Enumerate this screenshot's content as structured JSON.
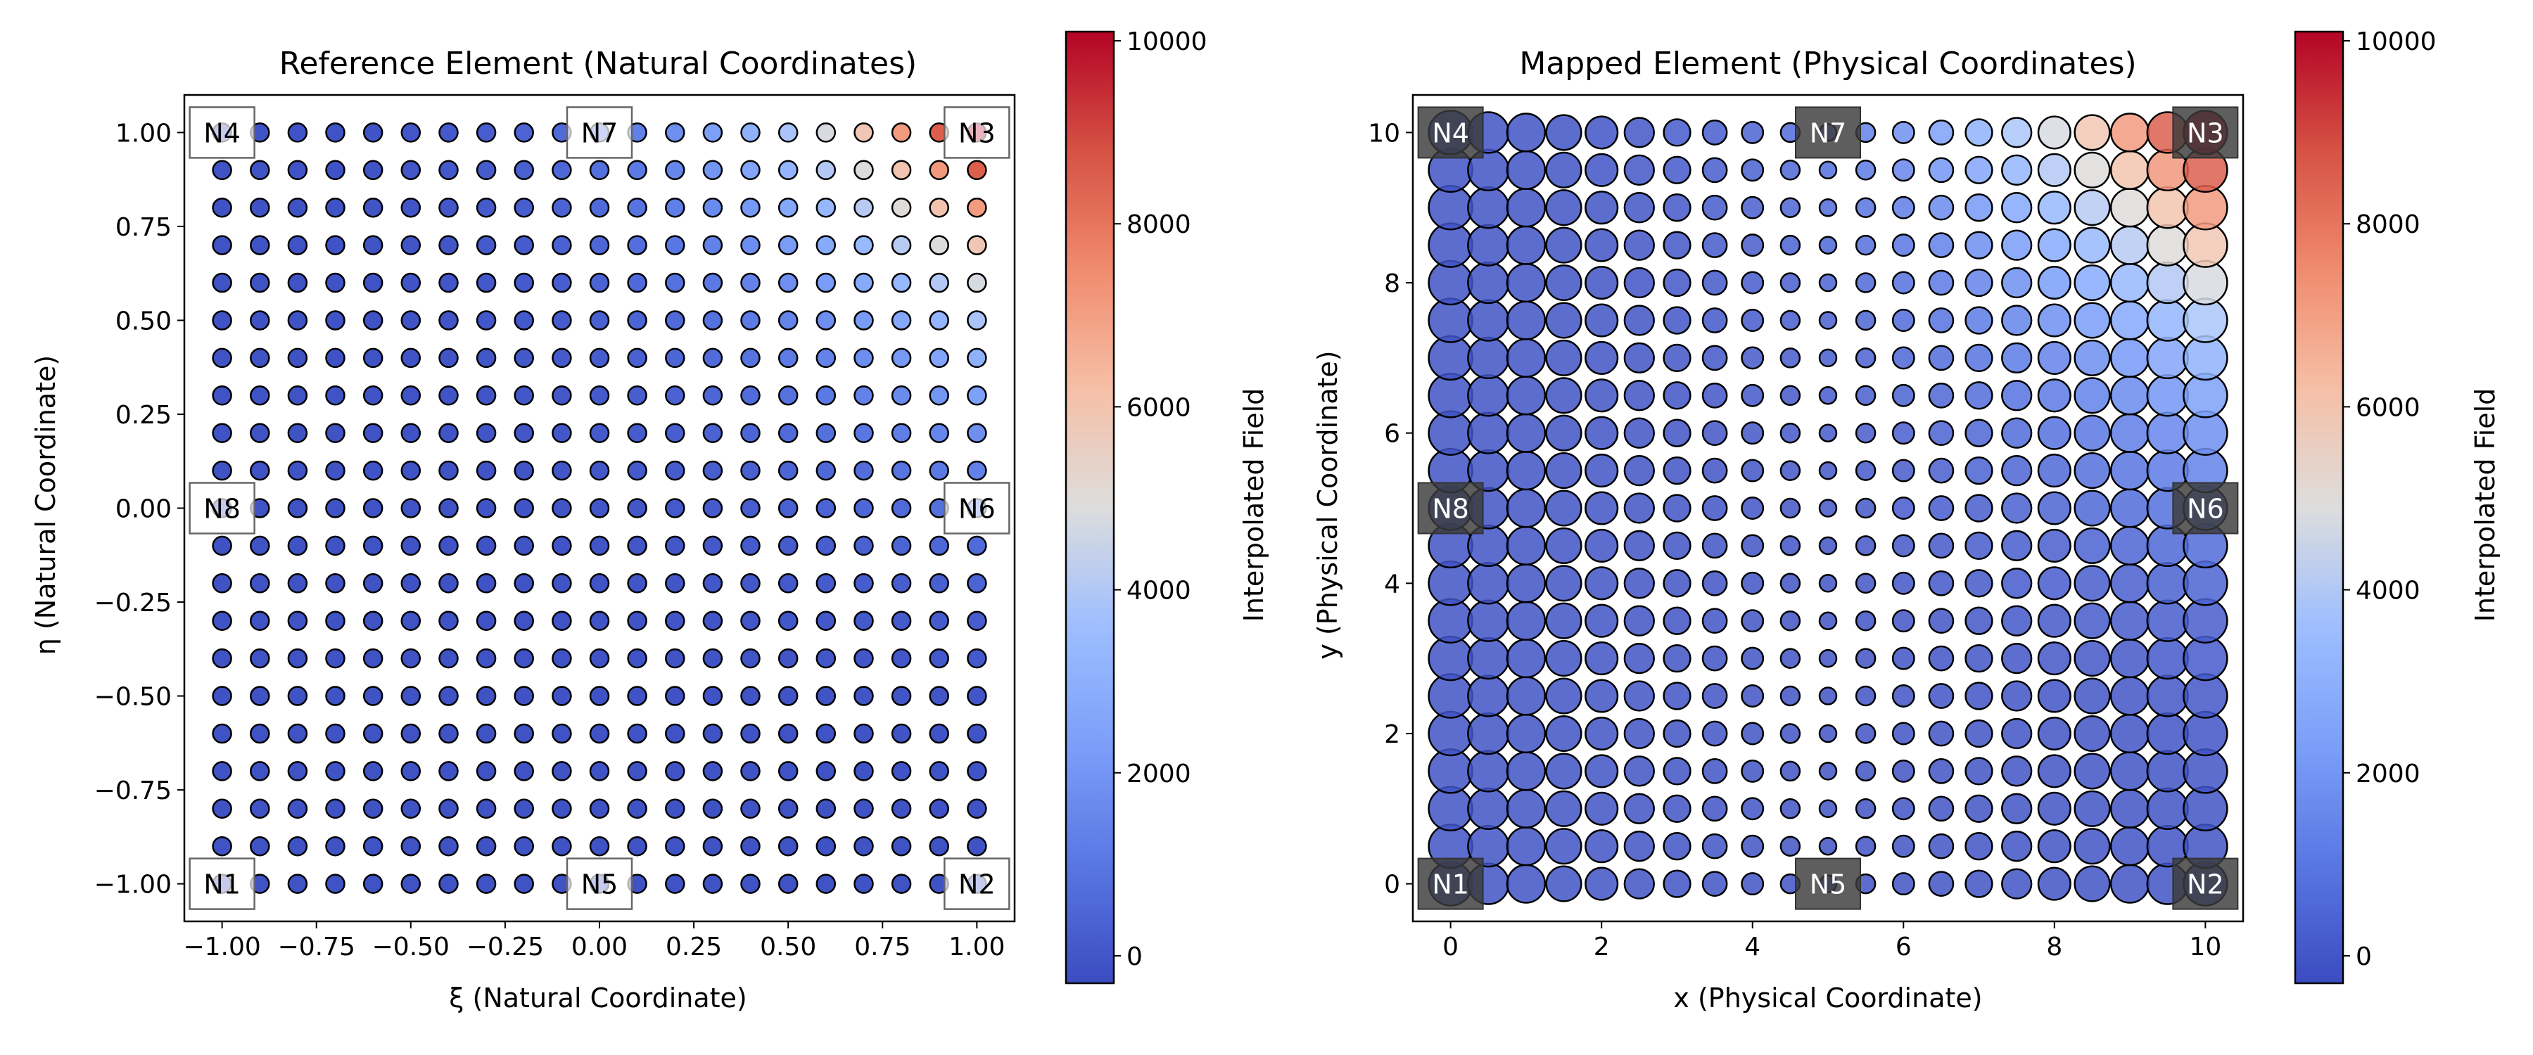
{
  "chart_data": [
    {
      "type": "scatter",
      "title": "Reference Element (Natural Coordinates)",
      "xlabel": "ξ (Natural Coordinate)",
      "ylabel": "η (Natural Coordinate)",
      "xlim": [
        -1.1,
        1.1
      ],
      "ylim": [
        -1.1,
        1.1
      ],
      "xticks": [
        -1.0,
        -0.75,
        -0.5,
        -0.25,
        0.0,
        0.25,
        0.5,
        0.75,
        1.0
      ],
      "xtick_labels": [
        "−1.00",
        "−0.75",
        "−0.50",
        "−0.25",
        "0.00",
        "0.25",
        "0.50",
        "0.75",
        "1.00"
      ],
      "yticks": [
        -1.0,
        -0.75,
        -0.5,
        -0.25,
        0.0,
        0.25,
        0.5,
        0.75,
        1.0
      ],
      "ytick_labels": [
        "−1.00",
        "−0.75",
        "−0.50",
        "−0.25",
        "0.00",
        "0.25",
        "0.50",
        "0.75",
        "1.00"
      ],
      "grid": false,
      "points": {
        "grid_n": 21,
        "range": [
          -1.0,
          1.0
        ],
        "marker": "circle",
        "size": "uniform"
      },
      "nodes": [
        {
          "label": "N1",
          "x": -1.0,
          "y": -1.0
        },
        {
          "label": "N2",
          "x": 1.0,
          "y": -1.0
        },
        {
          "label": "N3",
          "x": 1.0,
          "y": 1.0
        },
        {
          "label": "N4",
          "x": -1.0,
          "y": 1.0
        },
        {
          "label": "N5",
          "x": 0.0,
          "y": -1.0
        },
        {
          "label": "N6",
          "x": 1.0,
          "y": 0.0
        },
        {
          "label": "N7",
          "x": 0.0,
          "y": 1.0
        },
        {
          "label": "N8",
          "x": -1.0,
          "y": 0.0
        }
      ],
      "node_label_style": "white-box",
      "field_model": {
        "base": -100,
        "corner_peak": 10100,
        "exponent": 3.3
      },
      "colorbar": {
        "label": "Interpolated Field",
        "colormap": "coolwarm",
        "vmin": -300,
        "vmax": 10100,
        "ticks": [
          0,
          2000,
          4000,
          6000,
          8000,
          10000
        ],
        "tick_labels": [
          "0",
          "2000",
          "4000",
          "6000",
          "8000",
          "10000"
        ]
      }
    },
    {
      "type": "scatter",
      "title": "Mapped Element (Physical Coordinates)",
      "xlabel": "x (Physical Coordinate)",
      "ylabel": "y (Physical Coordinate)",
      "xlim": [
        -0.5,
        10.5
      ],
      "ylim": [
        -0.5,
        10.5
      ],
      "xticks": [
        0,
        2,
        4,
        6,
        8,
        10
      ],
      "xtick_labels": [
        "0",
        "2",
        "4",
        "6",
        "8",
        "10"
      ],
      "yticks": [
        0,
        2,
        4,
        6,
        8,
        10
      ],
      "ytick_labels": [
        "0",
        "2",
        "4",
        "6",
        "8",
        "10"
      ],
      "grid": false,
      "points": {
        "grid_n": 21,
        "range": [
          0,
          10
        ],
        "marker": "circle",
        "size": "varies"
      },
      "nodes": [
        {
          "label": "N1",
          "x": 0,
          "y": 0
        },
        {
          "label": "N2",
          "x": 10,
          "y": 0
        },
        {
          "label": "N3",
          "x": 10,
          "y": 10
        },
        {
          "label": "N4",
          "x": 0,
          "y": 10
        },
        {
          "label": "N5",
          "x": 5,
          "y": 0
        },
        {
          "label": "N6",
          "x": 10,
          "y": 5
        },
        {
          "label": "N7",
          "x": 5,
          "y": 10
        },
        {
          "label": "N8",
          "x": 0,
          "y": 5
        }
      ],
      "node_label_style": "dark-box",
      "field_model": {
        "base": -100,
        "corner_peak": 10100,
        "exponent": 3.3
      },
      "colorbar": {
        "label": "Interpolated Field",
        "colormap": "coolwarm",
        "vmin": -300,
        "vmax": 10100,
        "ticks": [
          0,
          2000,
          4000,
          6000,
          8000,
          10000
        ],
        "tick_labels": [
          "0",
          "2000",
          "4000",
          "6000",
          "8000",
          "10000"
        ]
      }
    }
  ],
  "colors": {
    "cool_end": "#3b4cc0",
    "neutral": "#dddddd",
    "warm_end": "#b40426",
    "marker_edge": "#000000",
    "dark_node_box": "#3a3a3a"
  }
}
